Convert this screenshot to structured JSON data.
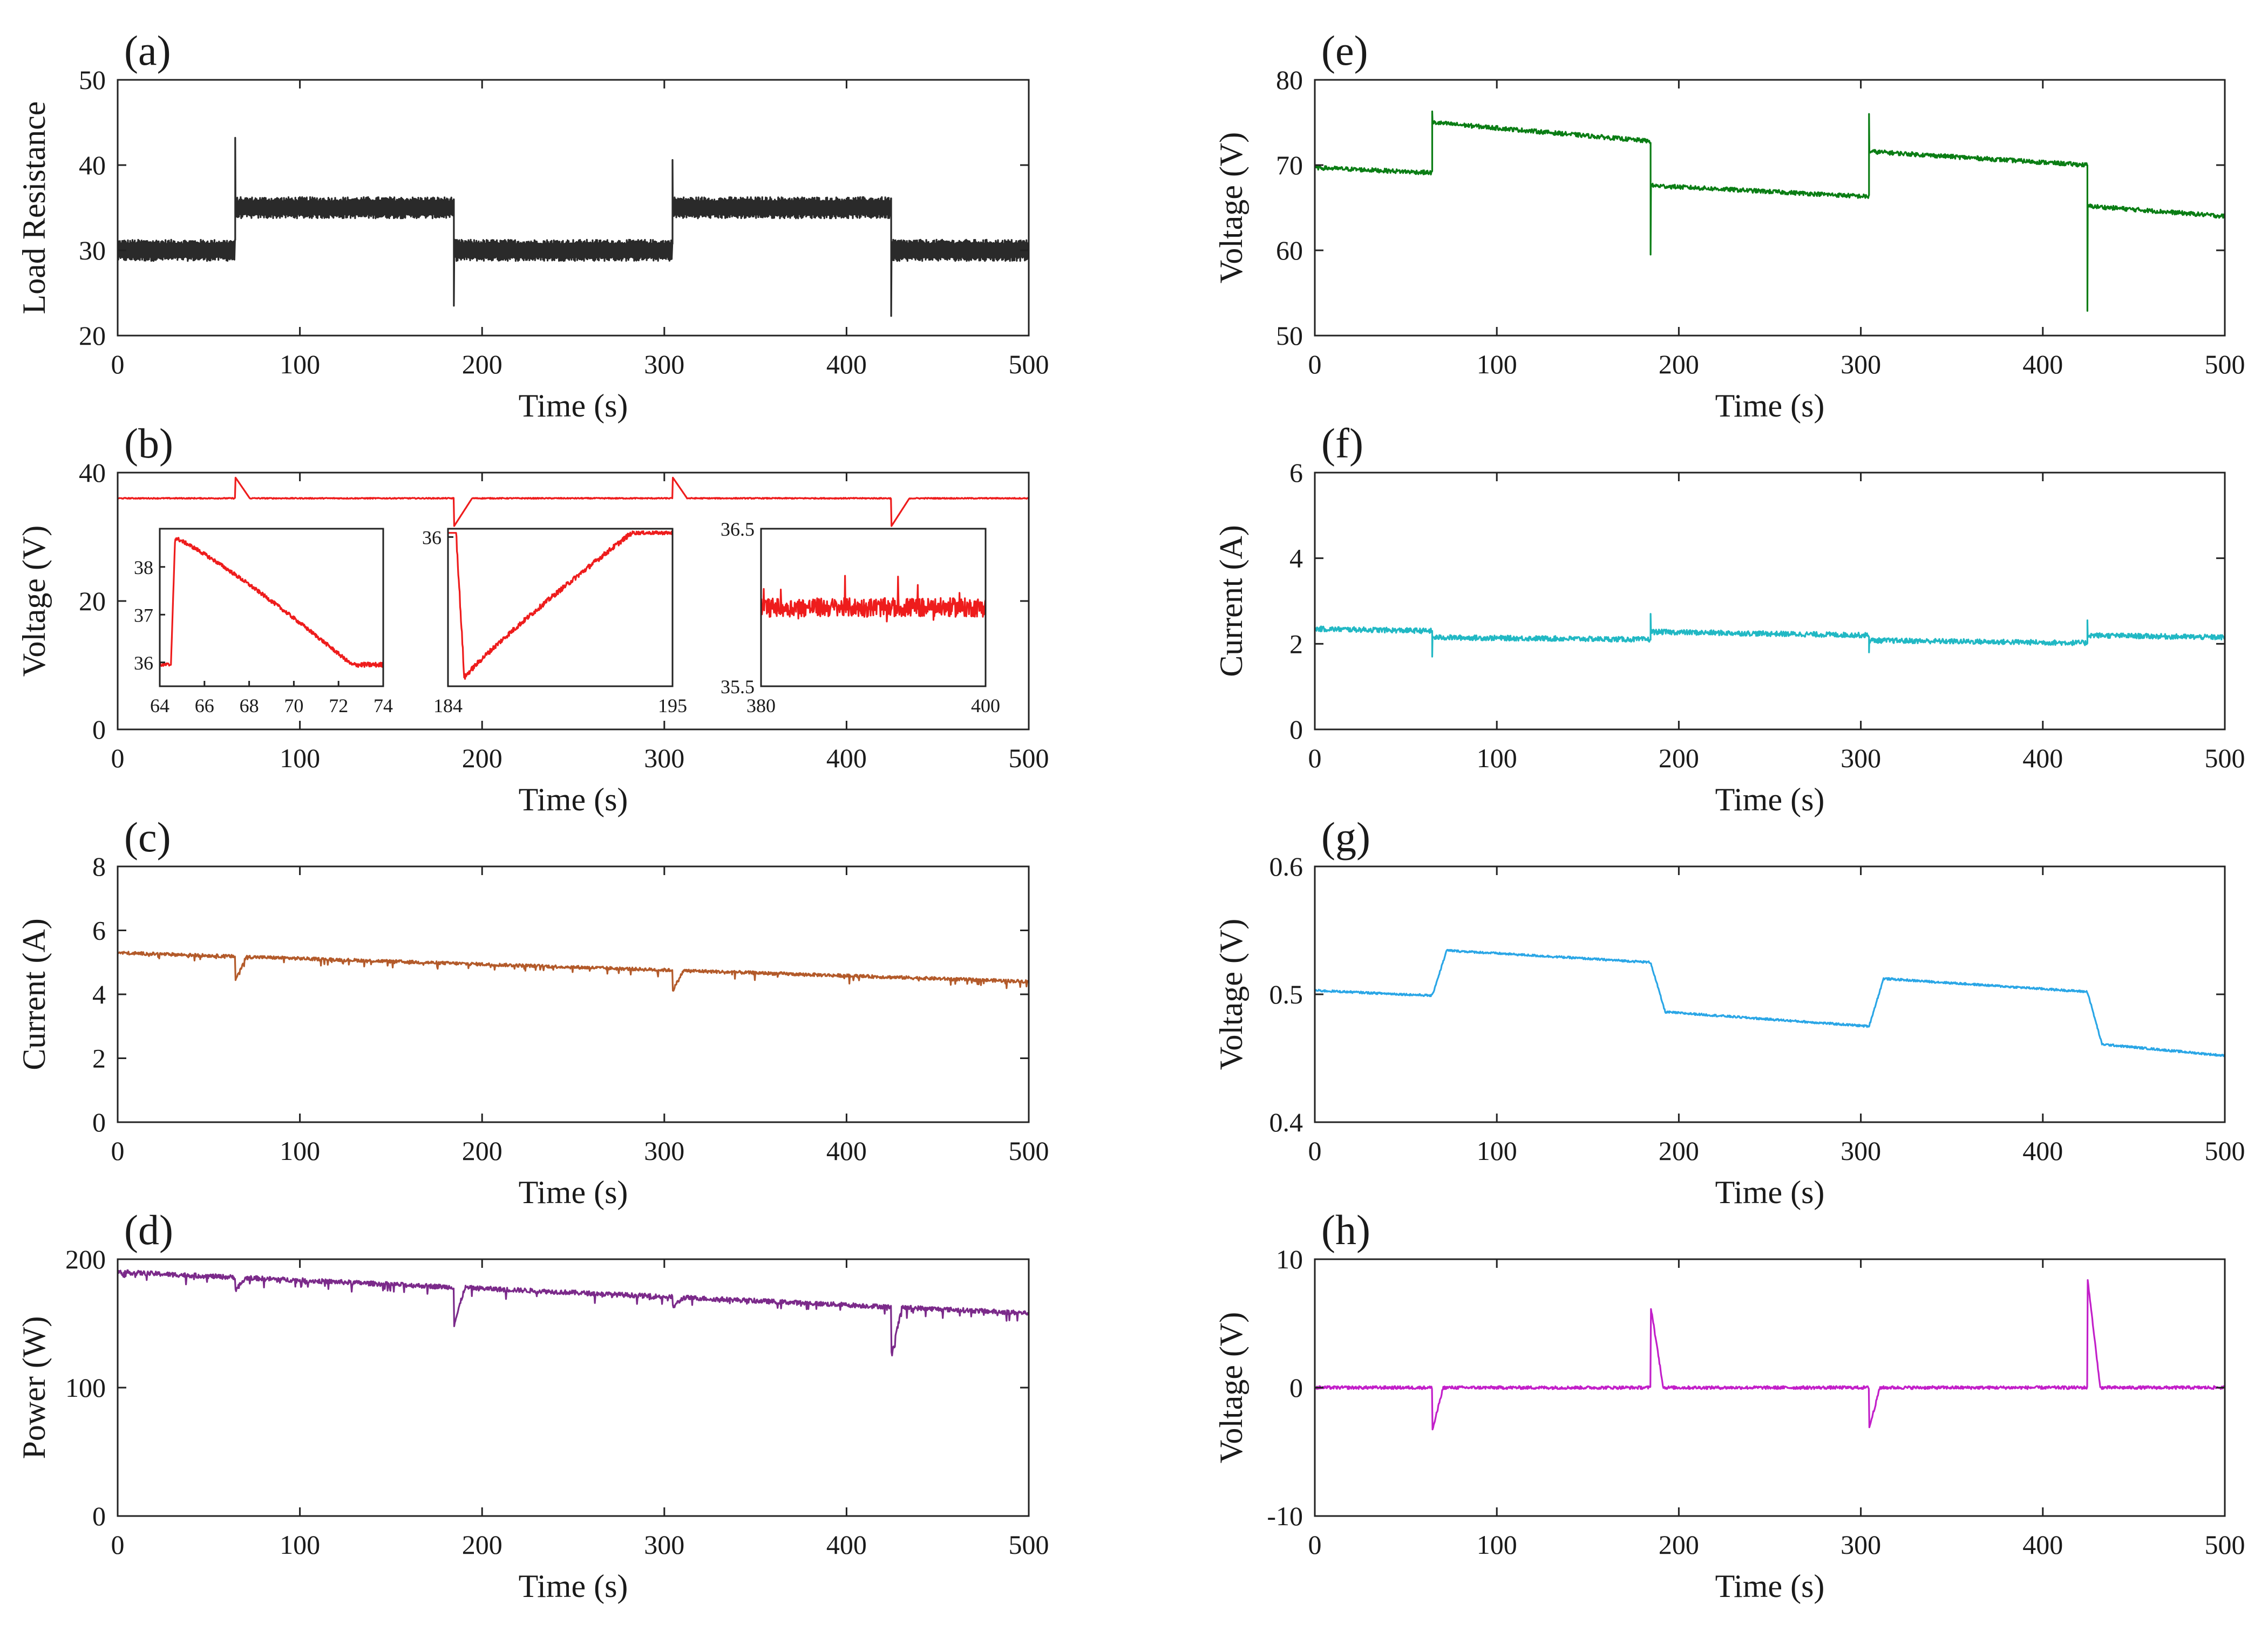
{
  "chart_data": [
    {
      "id": "a",
      "panel_label": "(a)",
      "type": "line",
      "xlabel": "Time (s)",
      "ylabel": "Load Resistance",
      "xlim": [
        0,
        500
      ],
      "ylim": [
        20,
        50
      ],
      "xticks": [
        0,
        100,
        200,
        300,
        400,
        500
      ],
      "yticks": [
        20,
        30,
        40,
        50
      ],
      "color": "#2a2a2a",
      "series": [
        {
          "name": "Load Resistance",
          "model": "load",
          "segments": [
            {
              "t0": 0,
              "t1": 64.5,
              "v": 30
            },
            {
              "t0": 64.5,
              "t1": 184.5,
              "v": 35
            },
            {
              "t0": 184.5,
              "t1": 304.5,
              "v": 30
            },
            {
              "t0": 304.5,
              "t1": 424.5,
              "v": 35
            },
            {
              "t0": 424.5,
              "t1": 500,
              "v": 30
            }
          ],
          "ripple": 1.0,
          "spikes": [
            {
              "t": 64.5,
              "peak": 43.2
            },
            {
              "t": 184.5,
              "peak": 23.5
            },
            {
              "t": 304.5,
              "peak": 40.6
            },
            {
              "t": 424.5,
              "peak": 22.3
            }
          ]
        }
      ],
      "insets": []
    },
    {
      "id": "b",
      "panel_label": "(b)",
      "type": "line",
      "xlabel": "Time (s)",
      "ylabel": "Voltage (V)",
      "xlim": [
        0,
        500
      ],
      "ylim": [
        0,
        40
      ],
      "xticks": [
        0,
        100,
        200,
        300,
        400,
        500
      ],
      "yticks": [
        0,
        20,
        40
      ],
      "color": "#ee1c1c",
      "series": [
        {
          "name": "Voltage",
          "model": "voltage_b",
          "base": 36,
          "noise": 0.08,
          "events": [
            {
              "t": 64.5,
              "peak": 39.3,
              "dur": 8
            },
            {
              "t": 184.5,
              "peak": 31.6,
              "dur": 10
            },
            {
              "t": 304.5,
              "peak": 39.3,
              "dur": 8
            },
            {
              "t": 424.5,
              "peak": 31.6,
              "dur": 10
            }
          ]
        }
      ],
      "insets": [
        {
          "xlim": [
            64,
            74
          ],
          "ylim": [
            35.5,
            38.8
          ],
          "xticks": [
            64,
            66,
            68,
            70,
            72,
            74
          ],
          "yticks": [
            36,
            37,
            38
          ],
          "model": "inset_decay"
        },
        {
          "xlim": [
            184,
            195
          ],
          "ylim": [
            34.2,
            36.1
          ],
          "xticks": [
            184,
            195
          ],
          "yticks": [
            36
          ],
          "model": "inset_recover"
        },
        {
          "xlim": [
            380,
            400
          ],
          "ylim": [
            35.5,
            36.5
          ],
          "xticks": [
            380,
            400
          ],
          "yticks": [
            35.5,
            36.5
          ],
          "model": "inset_noise"
        }
      ]
    },
    {
      "id": "c",
      "panel_label": "(c)",
      "type": "line",
      "xlabel": "Time (s)",
      "ylabel": "Current (A)",
      "xlim": [
        0,
        500
      ],
      "ylim": [
        0,
        8
      ],
      "xticks": [
        0,
        100,
        200,
        300,
        400,
        500
      ],
      "yticks": [
        0,
        2,
        4,
        6,
        8
      ],
      "color": "#b35a2a",
      "series": [
        {
          "name": "Current",
          "model": "trend",
          "start": 5.3,
          "end": 4.4,
          "noise": 0.05,
          "dips": [
            {
              "t": 64.5,
              "depth": 0.75
            },
            {
              "t": 304.5,
              "depth": 0.65
            }
          ]
        }
      ],
      "insets": []
    },
    {
      "id": "d",
      "panel_label": "(d)",
      "type": "line",
      "xlabel": "Time (s)",
      "ylabel": "Power (W)",
      "xlim": [
        0,
        500
      ],
      "ylim": [
        0,
        200
      ],
      "xticks": [
        0,
        100,
        200,
        300,
        400,
        500
      ],
      "yticks": [
        0,
        100,
        200
      ],
      "color": "#7b2a8a",
      "series": [
        {
          "name": "Power",
          "model": "trend",
          "start": 190,
          "end": 158,
          "noise": 1.8,
          "dips": [
            {
              "t": 64.5,
              "depth": 10
            },
            {
              "t": 184.5,
              "depth": 30
            },
            {
              "t": 304.5,
              "depth": 8
            },
            {
              "t": 424.5,
              "depth": 38
            }
          ]
        }
      ],
      "insets": []
    },
    {
      "id": "e",
      "panel_label": "(e)",
      "type": "line",
      "xlabel": "Time (s)",
      "ylabel": "Voltage (V)",
      "xlim": [
        0,
        500
      ],
      "ylim": [
        50,
        80
      ],
      "xticks": [
        0,
        100,
        200,
        300,
        400,
        500
      ],
      "yticks": [
        50,
        60,
        70,
        80
      ],
      "color": "#0a7d14",
      "series": [
        {
          "name": "Voltage",
          "model": "steps",
          "noise": 0.25,
          "segments": [
            {
              "t0": 0,
              "t1": 64.5,
              "v0": 69.7,
              "v1": 69.1
            },
            {
              "t0": 64.5,
              "t1": 184.5,
              "v0": 75.0,
              "v1": 72.8
            },
            {
              "t0": 184.5,
              "t1": 304.5,
              "v0": 67.6,
              "v1": 66.3
            },
            {
              "t0": 304.5,
              "t1": 424.5,
              "v0": 71.6,
              "v1": 70.0
            },
            {
              "t0": 424.5,
              "t1": 500,
              "v0": 65.2,
              "v1": 64.0
            }
          ],
          "spikes": [
            {
              "t": 64.5,
              "peak": 76.3
            },
            {
              "t": 184.5,
              "peak": 59.5
            },
            {
              "t": 304.5,
              "peak": 76.0
            },
            {
              "t": 424.5,
              "peak": 52.9
            }
          ]
        }
      ],
      "insets": []
    },
    {
      "id": "f",
      "panel_label": "(f)",
      "type": "line",
      "xlabel": "Time (s)",
      "ylabel": "Current (A)",
      "xlim": [
        0,
        500
      ],
      "ylim": [
        0,
        6
      ],
      "xticks": [
        0,
        100,
        200,
        300,
        400,
        500
      ],
      "yticks": [
        0,
        2,
        4,
        6
      ],
      "color": "#21b8c4",
      "series": [
        {
          "name": "Current",
          "model": "steps",
          "noise": 0.06,
          "segments": [
            {
              "t0": 0,
              "t1": 64.5,
              "v0": 2.35,
              "v1": 2.3
            },
            {
              "t0": 64.5,
              "t1": 184.5,
              "v0": 2.15,
              "v1": 2.1
            },
            {
              "t0": 184.5,
              "t1": 304.5,
              "v0": 2.28,
              "v1": 2.2
            },
            {
              "t0": 304.5,
              "t1": 424.5,
              "v0": 2.08,
              "v1": 2.02
            },
            {
              "t0": 424.5,
              "t1": 500,
              "v0": 2.2,
              "v1": 2.15
            }
          ],
          "spikes": [
            {
              "t": 64.5,
              "peak": 1.7
            },
            {
              "t": 184.5,
              "peak": 2.7
            },
            {
              "t": 304.5,
              "peak": 1.8
            },
            {
              "t": 424.5,
              "peak": 2.55
            }
          ]
        }
      ],
      "insets": []
    },
    {
      "id": "g",
      "panel_label": "(g)",
      "type": "line",
      "xlabel": "Time (s)",
      "ylabel": "Voltage (V)",
      "xlim": [
        0,
        500
      ],
      "ylim": [
        0.4,
        0.6
      ],
      "xticks": [
        0,
        100,
        200,
        300,
        400,
        500
      ],
      "yticks": [
        0.4,
        0.5,
        0.6
      ],
      "color": "#2aa6e6",
      "series": [
        {
          "name": "Voltage",
          "model": "ramps",
          "noise": 0.0008,
          "segments": [
            {
              "t0": 0,
              "t1": 64.5,
              "v0": 0.503,
              "v1": 0.499
            },
            {
              "t0": 64.5,
              "t1": 184.5,
              "v0": 0.535,
              "v1": 0.525
            },
            {
              "t0": 184.5,
              "t1": 304.5,
              "v0": 0.487,
              "v1": 0.475
            },
            {
              "t0": 304.5,
              "t1": 424.5,
              "v0": 0.513,
              "v1": 0.502
            },
            {
              "t0": 424.5,
              "t1": 500,
              "v0": 0.462,
              "v1": 0.452
            }
          ],
          "rise": 8
        }
      ],
      "insets": []
    },
    {
      "id": "h",
      "panel_label": "(h)",
      "type": "line",
      "xlabel": "Time (s)",
      "ylabel": "Voltage (V)",
      "xlim": [
        0,
        500
      ],
      "ylim": [
        -10,
        10
      ],
      "xticks": [
        0,
        100,
        200,
        300,
        400,
        500
      ],
      "yticks": [
        -10,
        0,
        10
      ],
      "color": "#c21fc9",
      "series": [
        {
          "name": "Voltage",
          "model": "pulses",
          "noise": 0.12,
          "events": [
            {
              "t": 64.5,
              "peak": -3.4,
              "dur": 6
            },
            {
              "t": 184.5,
              "peak": 6.4,
              "dur": 7
            },
            {
              "t": 304.5,
              "peak": -3.2,
              "dur": 6
            },
            {
              "t": 424.5,
              "peak": 8.6,
              "dur": 7
            }
          ]
        }
      ],
      "insets": []
    }
  ]
}
